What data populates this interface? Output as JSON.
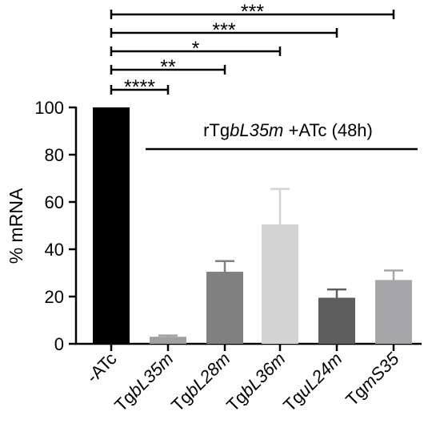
{
  "chart_data": {
    "type": "bar",
    "ylabel": "% mRNA",
    "ylim": [
      0,
      100
    ],
    "yticks": [
      0,
      20,
      40,
      60,
      80,
      100
    ],
    "categories": [
      {
        "label": "-ATc",
        "parts": [
          {
            "text": "-ATc",
            "italic": false
          }
        ]
      },
      {
        "label": "TgbL35m",
        "parts": [
          {
            "text": "Tg",
            "italic": false
          },
          {
            "text": "bL35m",
            "italic": true
          }
        ]
      },
      {
        "label": "TgbL28m",
        "parts": [
          {
            "text": "Tg",
            "italic": false
          },
          {
            "text": "bL28m",
            "italic": true
          }
        ]
      },
      {
        "label": "TgbL36m",
        "parts": [
          {
            "text": "Tg",
            "italic": false
          },
          {
            "text": "bL36m",
            "italic": true
          }
        ]
      },
      {
        "label": "TguL24m",
        "parts": [
          {
            "text": "Tg",
            "italic": false
          },
          {
            "text": "uL24m",
            "italic": true
          }
        ]
      },
      {
        "label": "TgmS35",
        "parts": [
          {
            "text": "Tg",
            "italic": false
          },
          {
            "text": "mS35",
            "italic": true
          }
        ]
      }
    ],
    "values": [
      100,
      3,
      30.5,
      50.5,
      19.5,
      27
    ],
    "errors": [
      0,
      0.5,
      4.5,
      15,
      3.5,
      4
    ],
    "colors": [
      "#000000",
      "#a0a0a0",
      "#808080",
      "#d3d3d3",
      "#5e5e5e",
      "#a6a6a9"
    ],
    "annotation": {
      "parts": [
        {
          "text": "rTg",
          "italic": false
        },
        {
          "text": "bL35m",
          "italic": true
        },
        {
          "text": " +ATc (48h)",
          "italic": false
        }
      ],
      "span": [
        1,
        5
      ]
    },
    "significance": [
      {
        "from": 0,
        "to": 1,
        "label": "****"
      },
      {
        "from": 0,
        "to": 2,
        "label": "**"
      },
      {
        "from": 0,
        "to": 3,
        "label": "*"
      },
      {
        "from": 0,
        "to": 4,
        "label": "***"
      },
      {
        "from": 0,
        "to": 5,
        "label": "***"
      }
    ]
  }
}
